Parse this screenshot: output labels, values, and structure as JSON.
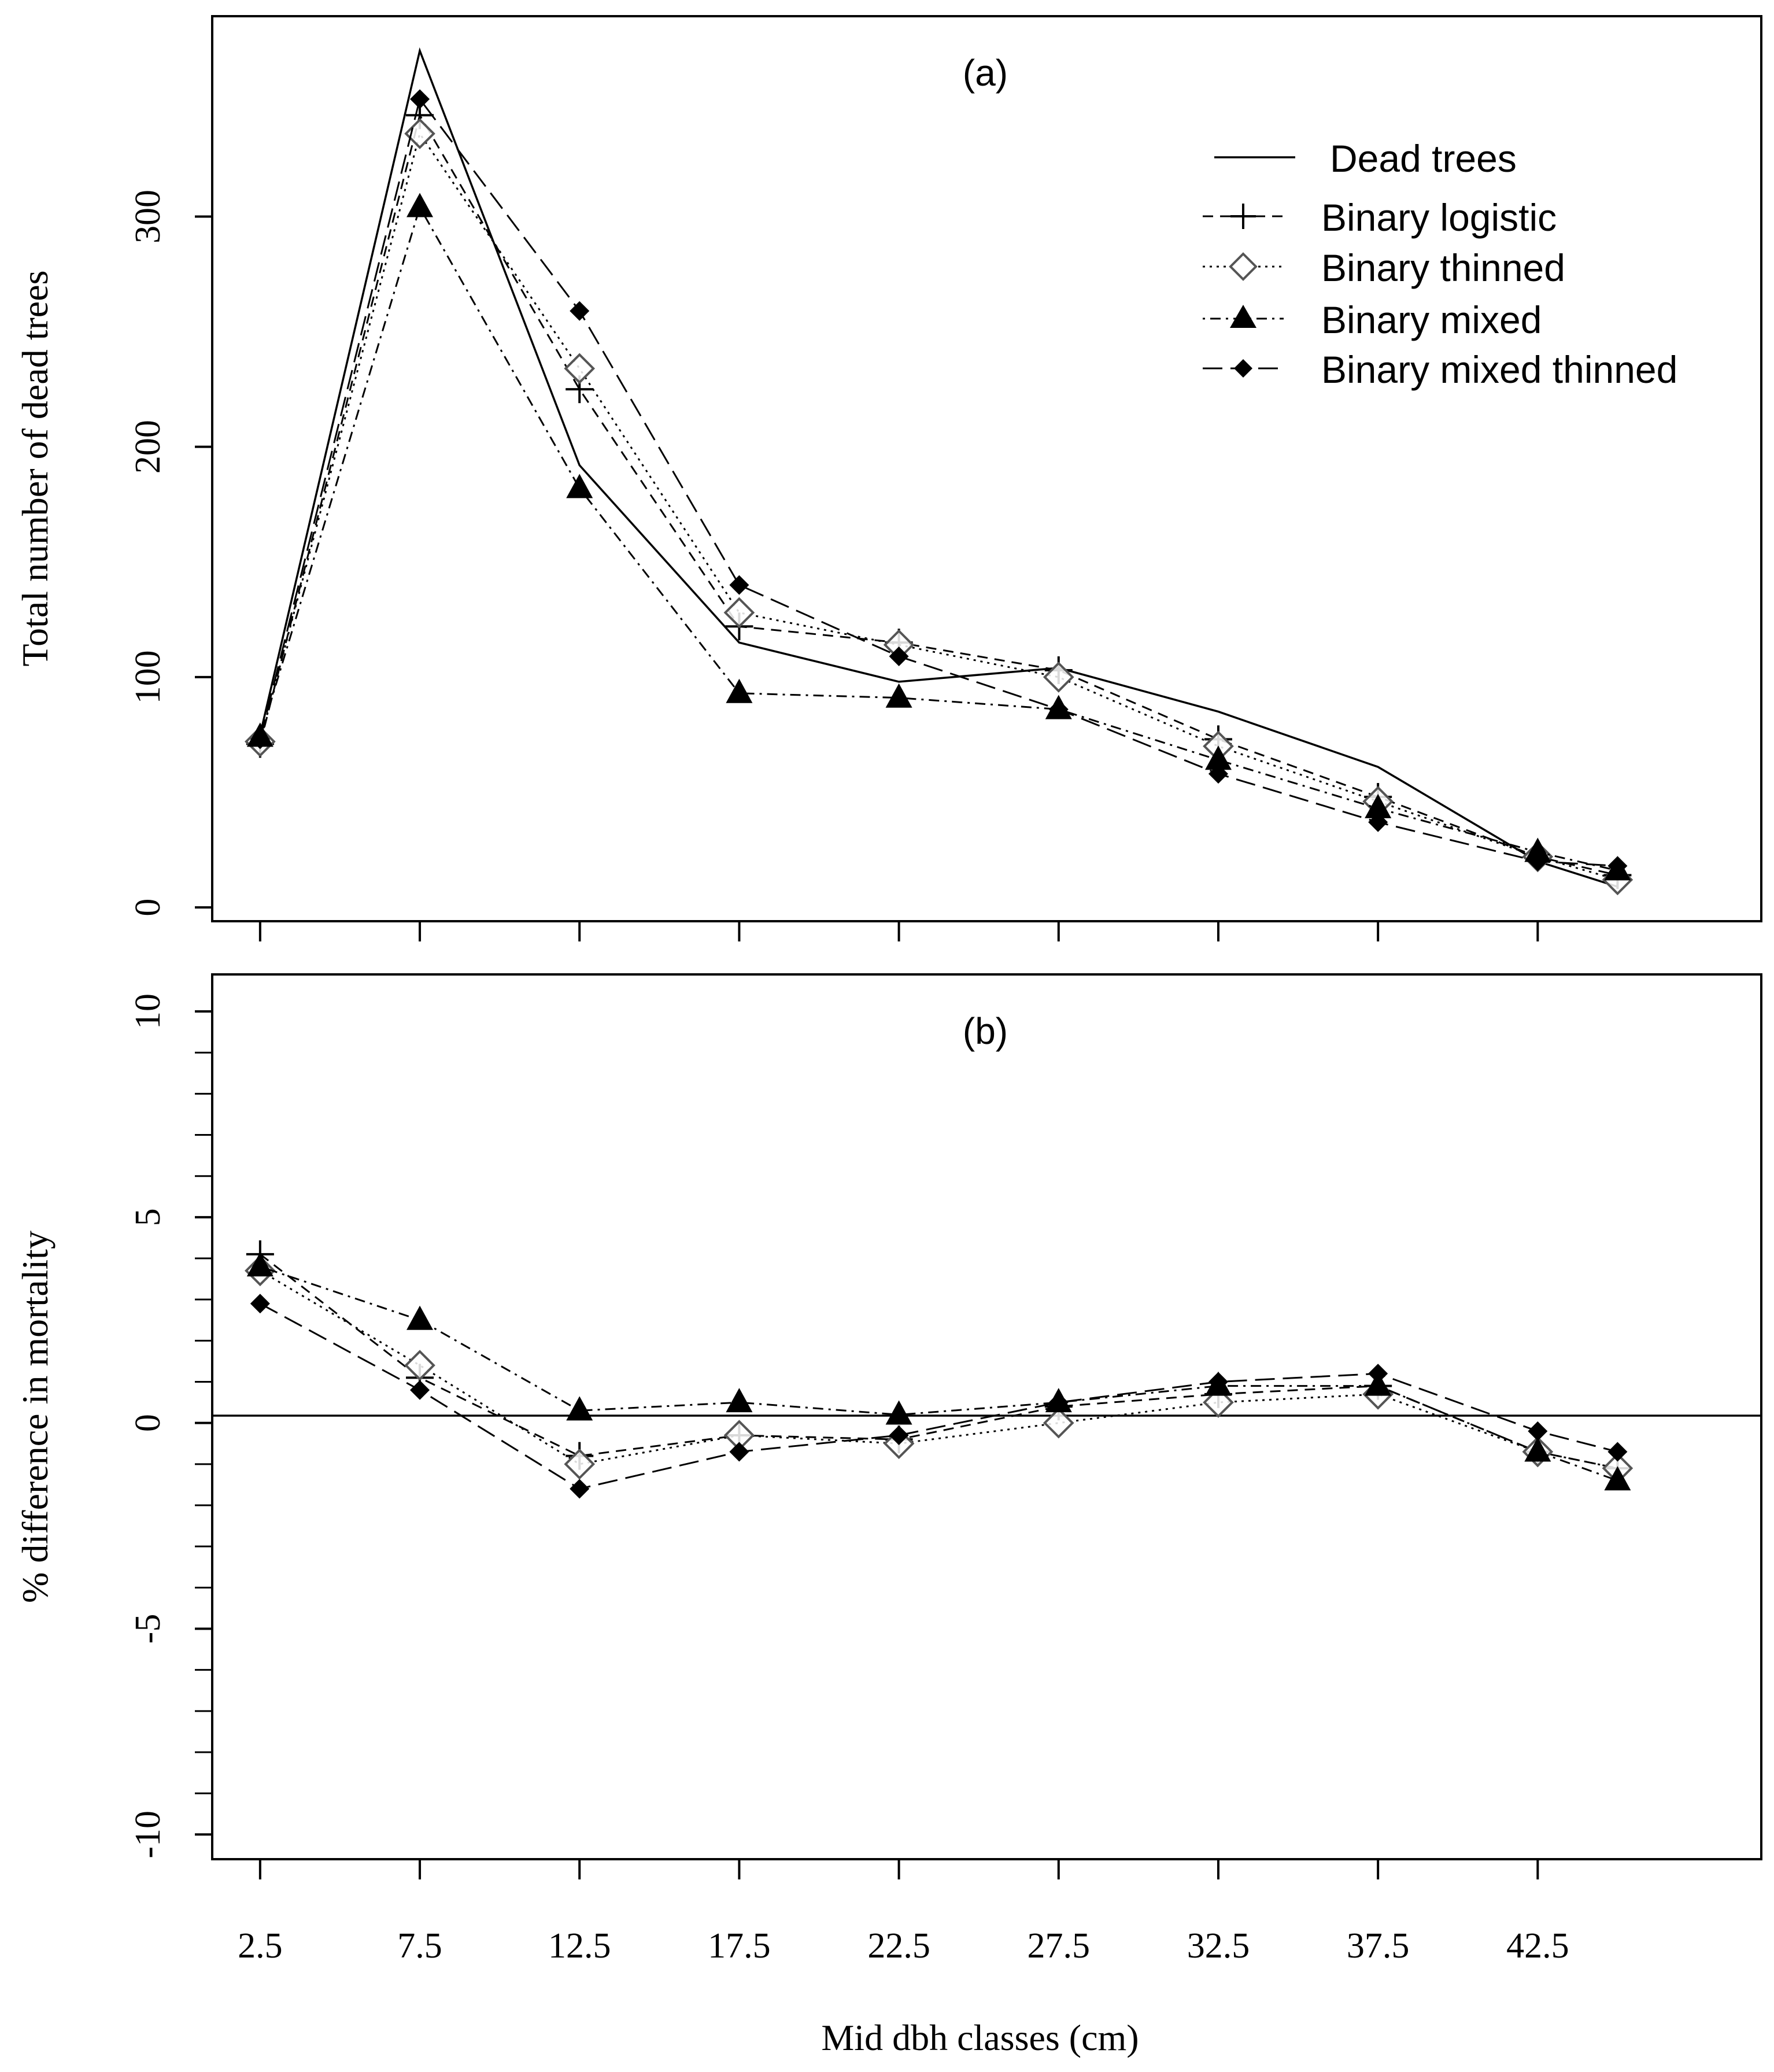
{
  "chart_data": [
    {
      "id": "a",
      "type": "line",
      "panel_label": "(a)",
      "ylabel": "Total number of dead trees",
      "xlabel": "Mid dbh classes (cm)",
      "x": [
        2.5,
        7.5,
        12.5,
        17.5,
        22.5,
        27.5,
        32.5,
        37.5,
        42.5,
        45.0
      ],
      "xlim": [
        1.0,
        49.5
      ],
      "ylim": [
        -6,
        387
      ],
      "yticks": [
        0,
        100,
        200,
        300
      ],
      "yticklabels": [
        "0",
        "100",
        "200",
        "300"
      ],
      "legend_position": "top-right",
      "series": [
        {
          "name": "Dead trees",
          "style": "solid",
          "marker": "none",
          "values": [
            75,
            372,
            192,
            115,
            98,
            104,
            85,
            61,
            20,
            9
          ]
        },
        {
          "name": "Binary logistic",
          "style": "dashed",
          "marker": "plus",
          "values": [
            71,
            344,
            225,
            122,
            115,
            103,
            73,
            48,
            22,
            14
          ]
        },
        {
          "name": "Binary thinned",
          "style": "dotted",
          "marker": "diamond-open",
          "values": [
            72,
            336,
            234,
            128,
            114,
            100,
            70,
            46,
            22,
            12
          ]
        },
        {
          "name": "Binary mixed",
          "style": "dotdash",
          "marker": "triangle-filled",
          "values": [
            74,
            304,
            182,
            93,
            91,
            86,
            64,
            43,
            24,
            16
          ]
        },
        {
          "name": "Binary mixed thinned",
          "style": "longdash",
          "marker": "diamond-filled",
          "values": [
            73,
            351,
            259,
            140,
            109,
            86,
            58,
            37,
            20,
            18
          ]
        }
      ]
    },
    {
      "id": "b",
      "type": "line",
      "panel_label": "(b)",
      "ylabel": "% difference in mortality",
      "xlabel": "Mid dbh classes (cm)",
      "x": [
        2.5,
        7.5,
        12.5,
        17.5,
        22.5,
        27.5,
        32.5,
        37.5,
        42.5,
        45.0
      ],
      "xlim": [
        1.0,
        49.5
      ],
      "ylim": [
        -10.6,
        10.9
      ],
      "yticks": [
        -10,
        -5,
        0,
        5,
        10
      ],
      "yticklabels": [
        "-10",
        "-5",
        "0",
        "5",
        "10"
      ],
      "reference_line": 0,
      "series": [
        {
          "name": "Binary logistic",
          "style": "dashed",
          "marker": "plus",
          "values": [
            4.1,
            1.1,
            -0.8,
            -0.3,
            -0.4,
            0.4,
            0.7,
            0.9,
            -0.7,
            -1.1
          ]
        },
        {
          "name": "Binary thinned",
          "style": "dotted",
          "marker": "diamond-open",
          "values": [
            3.7,
            1.4,
            -1.0,
            -0.3,
            -0.5,
            0.0,
            0.5,
            0.7,
            -0.7,
            -1.1
          ]
        },
        {
          "name": "Binary mixed",
          "style": "dotdash",
          "marker": "triangle-filled",
          "values": [
            3.8,
            2.5,
            0.3,
            0.5,
            0.2,
            0.5,
            0.9,
            0.9,
            -0.7,
            -1.4
          ]
        },
        {
          "name": "Binary mixed thinned",
          "style": "longdash",
          "marker": "diamond-filled",
          "values": [
            2.9,
            0.8,
            -1.6,
            -0.7,
            -0.3,
            0.5,
            1.0,
            1.2,
            -0.2,
            -0.7
          ]
        }
      ]
    }
  ],
  "x_axis": {
    "ticks": [
      2.5,
      7.5,
      12.5,
      17.5,
      22.5,
      27.5,
      32.5,
      37.5,
      42.5
    ],
    "ticklabels": [
      "2.5",
      "7.5",
      "12.5",
      "17.5",
      "22.5",
      "27.5",
      "32.5",
      "37.5",
      "42.5"
    ],
    "title": "Mid dbh classes (cm)"
  }
}
